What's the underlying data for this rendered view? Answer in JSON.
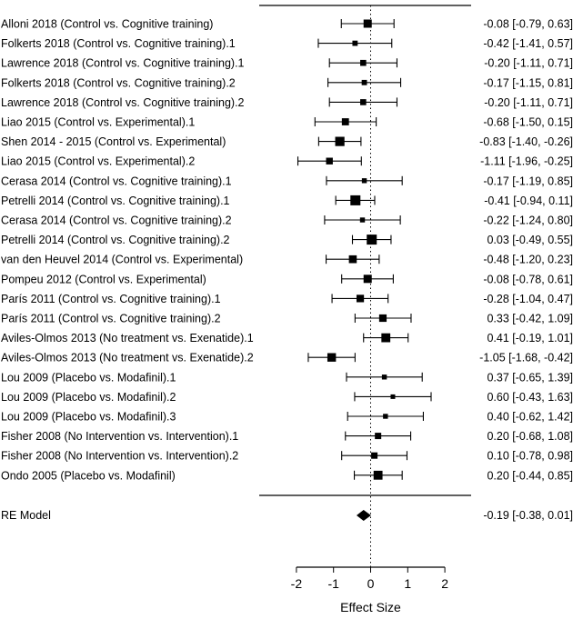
{
  "chart_data": {
    "type": "forest",
    "xlabel": "Effect Size",
    "xlim": [
      -2,
      2
    ],
    "xticks": [
      "-2",
      "-1",
      "0",
      "1",
      "2"
    ],
    "reference_line": 0,
    "studies": [
      {
        "label": "Alloni 2018 (Control vs. Cognitive training)",
        "est": -0.08,
        "lo": -0.79,
        "hi": 0.63,
        "text": "-0.08 [-0.79, 0.63]",
        "weight": 0.75
      },
      {
        "label": "Folkerts 2018 (Control vs. Cognitive training).1",
        "est": -0.42,
        "lo": -1.41,
        "hi": 0.57,
        "text": "-0.42 [-1.41, 0.57]",
        "weight": 0.35
      },
      {
        "label": "Lawrence 2018 (Control vs. Cognitive training).1",
        "est": -0.2,
        "lo": -1.11,
        "hi": 0.71,
        "text": "-0.20 [-1.11, 0.71]",
        "weight": 0.45
      },
      {
        "label": "Folkerts 2018 (Control vs. Cognitive training).2",
        "est": -0.17,
        "lo": -1.15,
        "hi": 0.81,
        "text": "-0.17 [-1.15, 0.81]",
        "weight": 0.35
      },
      {
        "label": "Lawrence 2018 (Control vs. Cognitive training).2",
        "est": -0.2,
        "lo": -1.11,
        "hi": 0.71,
        "text": "-0.20 [-1.11, 0.71]",
        "weight": 0.45
      },
      {
        "label": "Liao 2015 (Control vs. Experimental).1",
        "est": -0.68,
        "lo": -1.5,
        "hi": 0.15,
        "text": "-0.68 [-1.50, 0.15]",
        "weight": 0.6
      },
      {
        "label": "Shen 2014 - 2015 (Control vs. Experimental)",
        "est": -0.83,
        "lo": -1.4,
        "hi": -0.26,
        "text": "-0.83 [-1.40, -0.26]",
        "weight": 0.9
      },
      {
        "label": "Liao 2015 (Control vs. Experimental).2",
        "est": -1.11,
        "lo": -1.96,
        "hi": -0.25,
        "text": "-1.11 [-1.96, -0.25]",
        "weight": 0.55
      },
      {
        "label": "Cerasa 2014 (Control vs. Cognitive training).1",
        "est": -0.17,
        "lo": -1.19,
        "hi": 0.85,
        "text": "-0.17 [-1.19, 0.85]",
        "weight": 0.3
      },
      {
        "label": "Petrelli 2014 (Control vs. Cognitive training).1",
        "est": -0.41,
        "lo": -0.94,
        "hi": 0.11,
        "text": "-0.41 [-0.94, 0.11]",
        "weight": 1.0
      },
      {
        "label": "Cerasa 2014 (Control vs. Cognitive training).2",
        "est": -0.22,
        "lo": -1.24,
        "hi": 0.8,
        "text": "-0.22 [-1.24, 0.80]",
        "weight": 0.3
      },
      {
        "label": "Petrelli 2014 (Control vs. Cognitive training).2",
        "est": 0.03,
        "lo": -0.49,
        "hi": 0.55,
        "text": "0.03 [-0.49, 0.55]",
        "weight": 1.0
      },
      {
        "label": "van den Heuvel 2014 (Control vs. Experimental)",
        "est": -0.48,
        "lo": -1.2,
        "hi": 0.23,
        "text": "-0.48 [-1.20, 0.23]",
        "weight": 0.7
      },
      {
        "label": "Pompeu 2012 (Control vs. Experimental)",
        "est": -0.08,
        "lo": -0.78,
        "hi": 0.61,
        "text": "-0.08 [-0.78, 0.61]",
        "weight": 0.75
      },
      {
        "label": "París 2011 (Control vs. Cognitive training).1",
        "est": -0.28,
        "lo": -1.04,
        "hi": 0.47,
        "text": "-0.28 [-1.04, 0.47]",
        "weight": 0.65
      },
      {
        "label": "París 2011 (Control vs. Cognitive training).2",
        "est": 0.33,
        "lo": -0.42,
        "hi": 1.09,
        "text": "0.33 [-0.42, 1.09]",
        "weight": 0.65
      },
      {
        "label": "Aviles-Olmos 2013 (No treatment vs. Exenatide).1",
        "est": 0.41,
        "lo": -0.19,
        "hi": 1.01,
        "text": "0.41 [-0.19, 1.01]",
        "weight": 0.85
      },
      {
        "label": "Aviles-Olmos 2013 (No treatment vs. Exenatide).2",
        "est": -1.05,
        "lo": -1.68,
        "hi": -0.42,
        "text": "-1.05 [-1.68, -0.42]",
        "weight": 0.8
      },
      {
        "label": "Lou 2009 (Placebo vs. Modafinil).1",
        "est": 0.37,
        "lo": -0.65,
        "hi": 1.39,
        "text": "0.37 [-0.65, 1.39]",
        "weight": 0.3
      },
      {
        "label": "Lou 2009 (Placebo vs. Modafinil).2",
        "est": 0.6,
        "lo": -0.43,
        "hi": 1.63,
        "text": "0.60 [-0.43, 1.63]",
        "weight": 0.25
      },
      {
        "label": "Lou 2009 (Placebo vs. Modafinil).3",
        "est": 0.4,
        "lo": -0.62,
        "hi": 1.42,
        "text": "0.40 [-0.62, 1.42]",
        "weight": 0.3
      },
      {
        "label": "Fisher 2008 (No Intervention vs. Intervention).1",
        "est": 0.2,
        "lo": -0.68,
        "hi": 1.08,
        "text": "0.20 [-0.68, 1.08]",
        "weight": 0.5
      },
      {
        "label": "Fisher 2008 (No Intervention vs. Intervention).2",
        "est": 0.1,
        "lo": -0.78,
        "hi": 0.98,
        "text": "0.10 [-0.78, 0.98]",
        "weight": 0.5
      },
      {
        "label": "Ondo 2005 (Placebo vs. Modafinil)",
        "est": 0.2,
        "lo": -0.44,
        "hi": 0.85,
        "text": "0.20 [-0.44, 0.85]",
        "weight": 0.85
      }
    ],
    "summary": {
      "label": "RE Model",
      "est": -0.19,
      "lo": -0.38,
      "hi": 0.01,
      "text": "-0.19 [-0.38, 0.01]"
    }
  }
}
